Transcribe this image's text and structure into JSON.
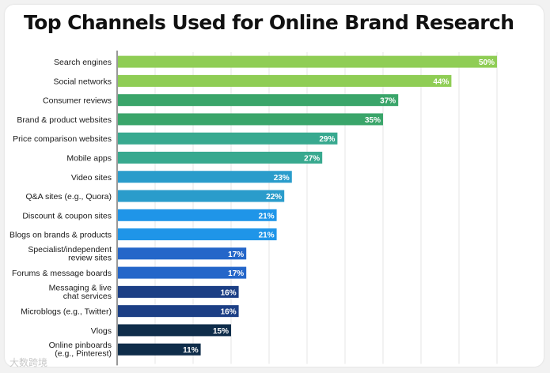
{
  "chart_data": {
    "type": "bar",
    "orientation": "horizontal",
    "title": "Top Channels Used for Online Brand Research",
    "xlabel": "",
    "ylabel": "",
    "xlim": [
      0,
      50
    ],
    "grid": true,
    "legend": "none",
    "value_suffix": "%",
    "categories": [
      "Search engines",
      "Social networks",
      "Consumer reviews",
      "Brand & product websites",
      "Price comparison websites",
      "Mobile apps",
      "Video sites",
      "Q&A sites (e.g., Quora)",
      "Discount & coupon sites",
      "Blogs on brands & products",
      "Specialist/independent review sites",
      "Forums & message boards",
      "Messaging & live chat services",
      "Microblogs (e.g., Twitter)",
      "Vlogs",
      "Online pinboards (e.g., Pinterest)"
    ],
    "values": [
      50,
      44,
      37,
      35,
      29,
      27,
      23,
      22,
      21,
      21,
      17,
      17,
      16,
      16,
      15,
      11
    ],
    "colors": [
      "#8fcd55",
      "#8fcd55",
      "#3aa56a",
      "#3aa56a",
      "#38a98f",
      "#38a98f",
      "#2a9ccb",
      "#2a9ccb",
      "#1f95e8",
      "#1f95e8",
      "#2466c9",
      "#2466c9",
      "#1c3f85",
      "#1c3f85",
      "#0f2d4a",
      "#0f2d4a"
    ]
  },
  "watermark": "大数跨境"
}
